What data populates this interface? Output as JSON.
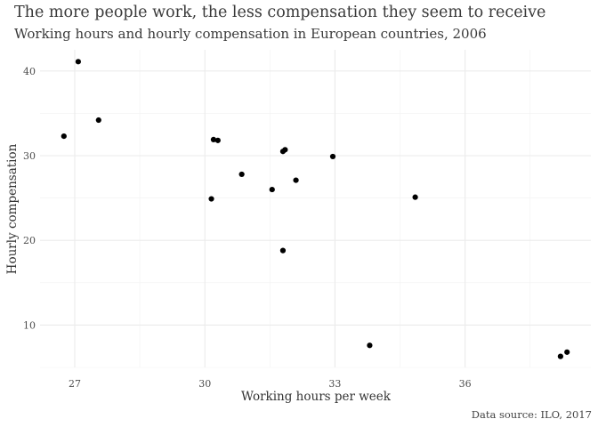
{
  "chart_data": {
    "type": "scatter",
    "title": "The more people work, the less compensation they seem to receive",
    "subtitle": "Working hours and hourly compensation in European countries, 2006",
    "xlabel": "Working hours per week",
    "ylabel": "Hourly compensation",
    "caption": "Data source: ILO, 2017",
    "xlim": [
      26.2,
      38.9
    ],
    "ylim": [
      5.0,
      42.5
    ],
    "x_ticks": [
      27,
      30,
      33,
      36
    ],
    "y_ticks": [
      10,
      20,
      30,
      40
    ],
    "grid": true,
    "points": [
      {
        "x": 26.75,
        "y": 32.3
      },
      {
        "x": 27.08,
        "y": 41.1
      },
      {
        "x": 27.55,
        "y": 34.2
      },
      {
        "x": 30.15,
        "y": 24.9
      },
      {
        "x": 30.2,
        "y": 31.9
      },
      {
        "x": 30.3,
        "y": 31.8
      },
      {
        "x": 30.85,
        "y": 27.8
      },
      {
        "x": 31.55,
        "y": 26.0
      },
      {
        "x": 31.8,
        "y": 30.5
      },
      {
        "x": 31.85,
        "y": 30.7
      },
      {
        "x": 31.8,
        "y": 18.8
      },
      {
        "x": 32.1,
        "y": 27.1
      },
      {
        "x": 32.95,
        "y": 29.9
      },
      {
        "x": 33.8,
        "y": 7.6
      },
      {
        "x": 34.85,
        "y": 25.1
      },
      {
        "x": 38.2,
        "y": 6.3
      },
      {
        "x": 38.35,
        "y": 6.8
      }
    ]
  }
}
